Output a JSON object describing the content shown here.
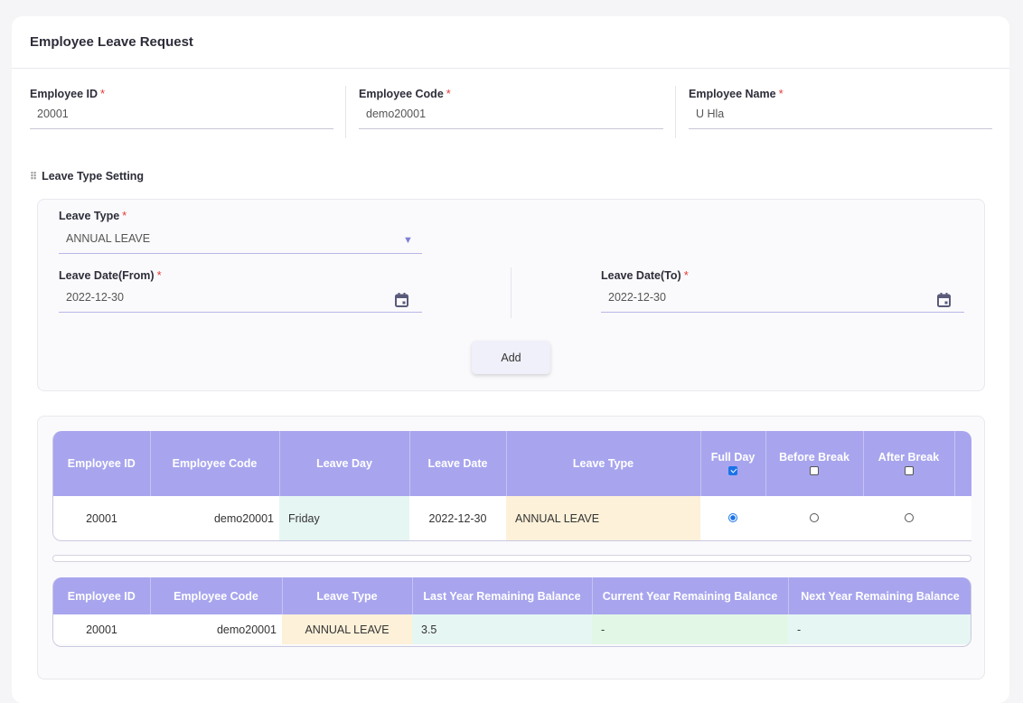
{
  "header": {
    "title": "Employee Leave Request"
  },
  "employee": {
    "id_label": "Employee ID",
    "id_value": "20001",
    "code_label": "Employee Code",
    "code_value": "demo20001",
    "name_label": "Employee Name",
    "name_value": "U Hla",
    "required_mark": "*"
  },
  "leave_setting": {
    "section_title": "Leave Type Setting",
    "leave_type_label": "Leave Type",
    "leave_type_value": "ANNUAL LEAVE",
    "date_from_label": "Leave Date(From)",
    "date_from_value": "2022-12-30",
    "date_to_label": "Leave Date(To)",
    "date_to_value": "2022-12-30",
    "add_label": "Add"
  },
  "detail_table": {
    "headers": [
      "Employee ID",
      "Employee Code",
      "Leave Day",
      "Leave Date",
      "Leave Type",
      "Full Day",
      "Before Break",
      "After Break"
    ],
    "header_checks": {
      "full_day": true,
      "before_break": false,
      "after_break": false
    },
    "rows": [
      {
        "employee_id": "20001",
        "employee_code": "demo20001",
        "leave_day": "Friday",
        "leave_date": "2022-12-30",
        "leave_type": "ANNUAL LEAVE",
        "selected": "full_day"
      }
    ]
  },
  "balance_table": {
    "headers": [
      "Employee ID",
      "Employee Code",
      "Leave Type",
      "Last Year Remaining Balance",
      "Current Year Remaining Balance",
      "Next Year Remaining Balance"
    ],
    "rows": [
      {
        "employee_id": "20001",
        "employee_code": "demo20001",
        "leave_type": "ANNUAL LEAVE",
        "last_year": "3.5",
        "current_year": "-",
        "next_year": "-"
      }
    ]
  },
  "colors": {
    "header_bg": "#a8a5ee",
    "accent": "#1a73e8",
    "required": "#e53935",
    "cell_green": "#e6f6f3",
    "cell_yellow": "#fdf1d9"
  }
}
